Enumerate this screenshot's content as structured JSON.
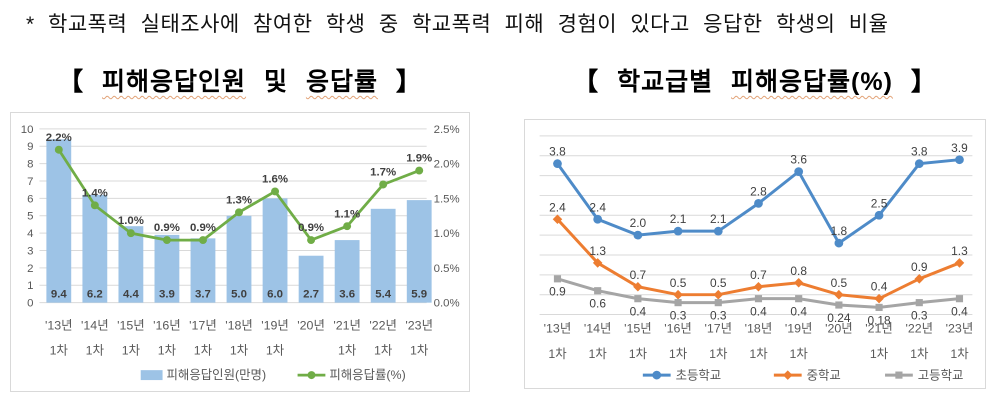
{
  "note": {
    "text": "* 학교폭력 실태조사에 참여한 학생 중 학교폭력 피해 경험이 있다고 응답한 학생의 비율"
  },
  "left_title": {
    "open": "【 ",
    "seg1": "피해응답인원",
    "mid": " 및 ",
    "seg2": "응답률",
    "close": " 】"
  },
  "right_title": {
    "open": "【 ",
    "seg1": "학교급별 ",
    "seg2": "피해응답률(%)",
    "close": " 】"
  },
  "colors": {
    "bar_fill": "#9dc3e6",
    "rate_line_green": "#70ad47",
    "elementary_blue": "#4e8bc8",
    "middle_orange": "#ed7d31",
    "high_gray": "#a5a5a5",
    "grid_line": "#d9d9d9",
    "axis_text": "#595959",
    "data_label": "#404040",
    "panel_border": "#d9d9d9"
  },
  "chart_data": [
    {
      "type": "bar+line",
      "title": "피해응답인원 및 응답률",
      "categories": [
        [
          "'13년",
          "1차"
        ],
        [
          "'14년",
          "1차"
        ],
        [
          "'15년",
          "1차"
        ],
        [
          "'16년",
          "1차"
        ],
        [
          "'17년",
          "1차"
        ],
        [
          "'18년",
          "1차"
        ],
        [
          "'19년",
          "1차"
        ],
        [
          "'20년",
          ""
        ],
        [
          "'21년",
          "1차"
        ],
        [
          "'22년",
          "1차"
        ],
        [
          "'23년",
          "1차"
        ]
      ],
      "bar_series": {
        "name": "피해응답인원(만명)",
        "values": [
          9.4,
          6.2,
          4.4,
          3.9,
          3.7,
          5.0,
          6.0,
          2.7,
          3.6,
          5.4,
          5.9
        ],
        "labels": [
          "9.4",
          "6.2",
          "4.4",
          "3.9",
          "3.7",
          "5.0",
          "6.0",
          "2.7",
          "3.6",
          "5.4",
          "5.9"
        ]
      },
      "line_series": {
        "name": "피해응답률(%)",
        "values": [
          2.2,
          1.4,
          1.0,
          0.9,
          0.9,
          1.3,
          1.6,
          0.9,
          1.1,
          1.7,
          1.9
        ],
        "labels": [
          "2.2%",
          "1.4%",
          "1.0%",
          "0.9%",
          "0.9%",
          "1.3%",
          "1.6%",
          "0.9%",
          "1.1%",
          "1.7%",
          "1.9%"
        ]
      },
      "left_axis": {
        "min": 0,
        "max": 10,
        "step": 1,
        "ticks": [
          "0",
          "1",
          "2",
          "3",
          "4",
          "5",
          "6",
          "7",
          "8",
          "9",
          "10"
        ]
      },
      "right_axis": {
        "min": 0,
        "max": 2.5,
        "step": 0.5,
        "ticks": [
          "0.0%",
          "0.5%",
          "1.0%",
          "1.5%",
          "2.0%",
          "2.5%"
        ]
      },
      "grid": true,
      "legend_position": "bottom"
    },
    {
      "type": "line",
      "title": "학교급별 피해응답률(%)",
      "categories": [
        [
          "'13년",
          "1차"
        ],
        [
          "'14년",
          "1차"
        ],
        [
          "'15년",
          "1차"
        ],
        [
          "'16년",
          "1차"
        ],
        [
          "'17년",
          "1차"
        ],
        [
          "'18년",
          "1차"
        ],
        [
          "'19년",
          "1차"
        ],
        [
          "'20년",
          ""
        ],
        [
          "'21년",
          "1차"
        ],
        [
          "'22년",
          "1차"
        ],
        [
          "'23년",
          "1차"
        ]
      ],
      "series": [
        {
          "name": "초등학교",
          "marker": "circle",
          "label_pos": "above",
          "values": [
            3.8,
            2.4,
            2.0,
            2.1,
            2.1,
            2.8,
            3.6,
            1.8,
            2.5,
            3.8,
            3.9
          ],
          "labels": [
            "3.8",
            "2.4",
            "2.0",
            "2.1",
            "2.1",
            "2.8",
            "3.6",
            "1.8",
            "2.5",
            "3.8",
            "3.9"
          ]
        },
        {
          "name": "중학교",
          "marker": "diamond",
          "label_pos": "above",
          "values": [
            2.4,
            1.3,
            0.7,
            0.5,
            0.5,
            0.7,
            0.8,
            0.5,
            0.4,
            0.9,
            1.3
          ],
          "labels": [
            "2.4",
            "1.3",
            "0.7",
            "0.5",
            "0.5",
            "0.7",
            "0.8",
            "0.5",
            "0.4",
            "0.9",
            "1.3"
          ]
        },
        {
          "name": "고등학교",
          "marker": "square",
          "label_pos": "below",
          "values": [
            0.9,
            0.6,
            0.4,
            0.3,
            0.3,
            0.4,
            0.4,
            0.24,
            0.18,
            0.3,
            0.4
          ],
          "labels": [
            "0.9",
            "0.6",
            "0.4",
            "0.3",
            "0.3",
            "0.4",
            "0.4",
            "0.24",
            "0.18",
            "0.3",
            "0.4"
          ]
        }
      ],
      "ylim": [
        0,
        4.5
      ],
      "grid_step": 0.5,
      "grid": true,
      "y_axis_labels": false,
      "legend_position": "bottom"
    }
  ]
}
